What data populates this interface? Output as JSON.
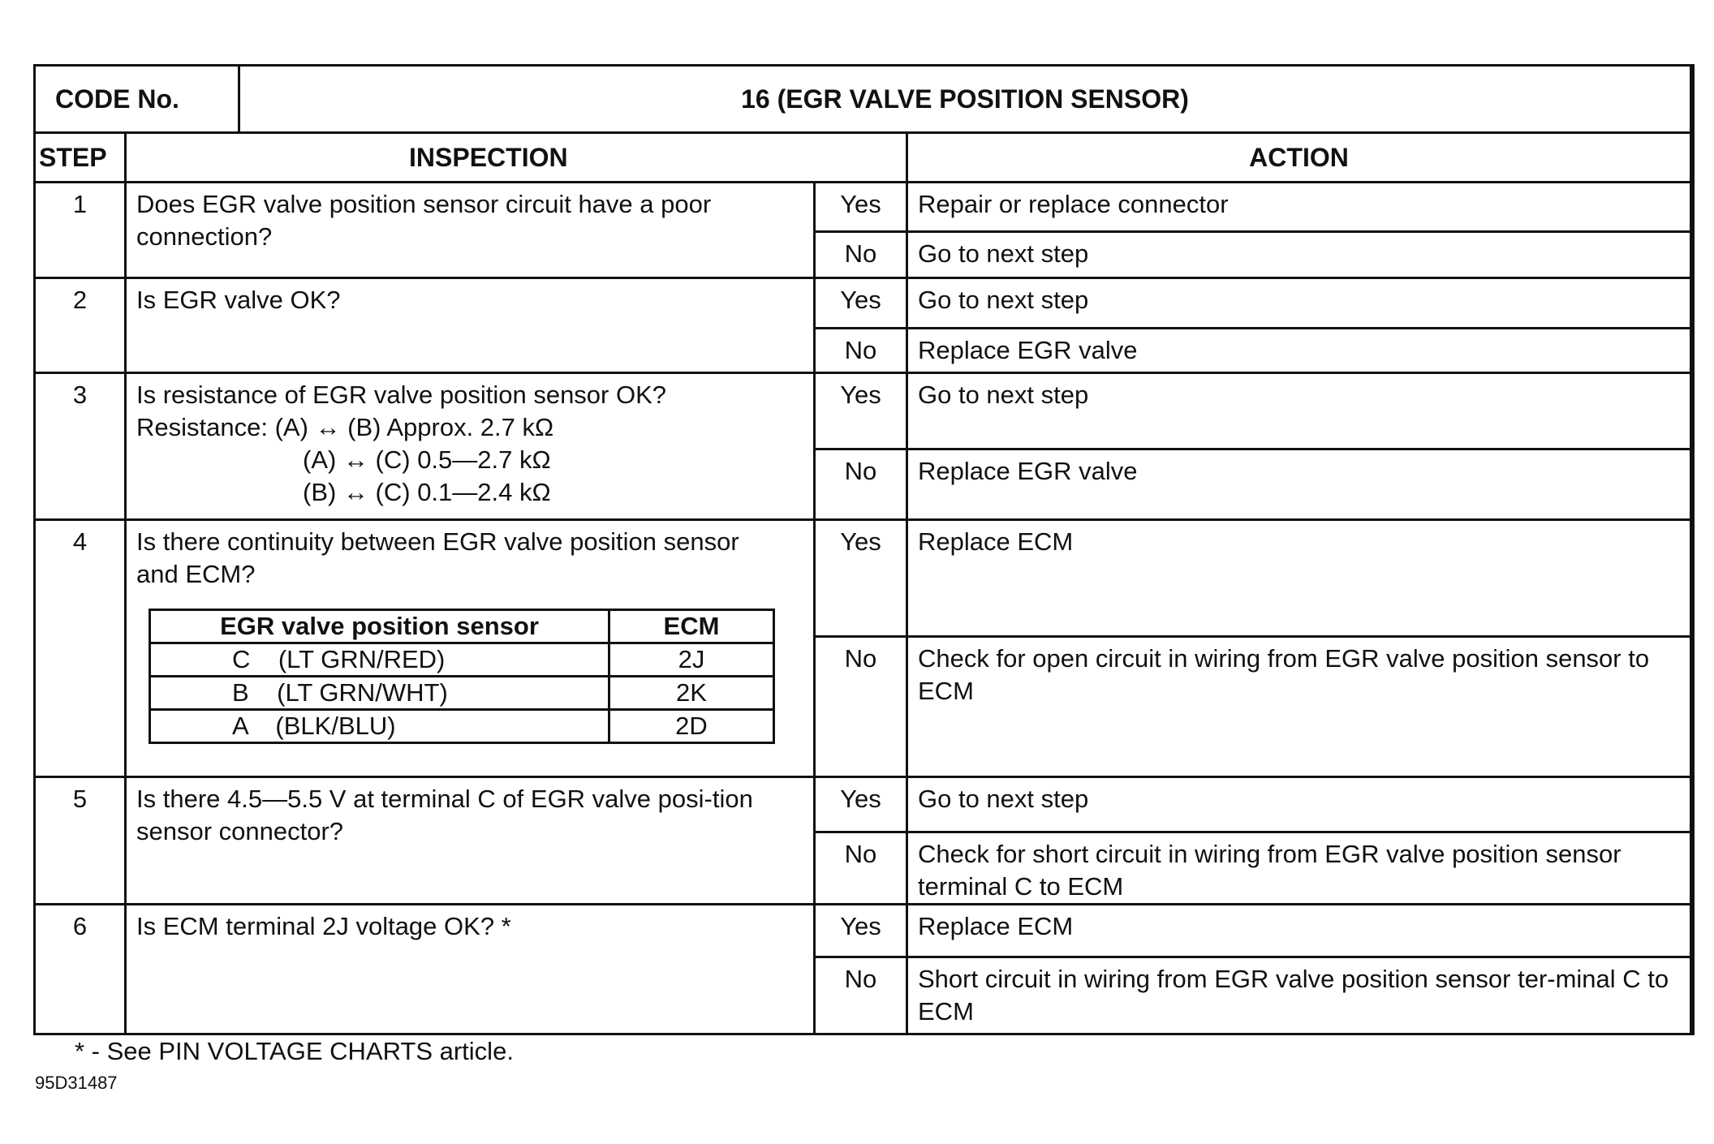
{
  "header": {
    "code_label": "CODE No.",
    "code_value": "16 (EGR VALVE POSITION SENSOR)",
    "step": "STEP",
    "inspection": "INSPECTION",
    "action": "ACTION"
  },
  "steps": [
    {
      "num": "1",
      "inspection": "Does EGR valve position sensor circuit have a poor connection?",
      "yes": "Yes",
      "yes_action": "Repair or replace connector",
      "no": "No",
      "no_action": "Go to next step"
    },
    {
      "num": "2",
      "inspection": "Is EGR valve OK?",
      "yes": "Yes",
      "yes_action": "Go to next step",
      "no": "No",
      "no_action": "Replace EGR valve"
    },
    {
      "num": "3",
      "inspection": "Is resistance of EGR valve position sensor OK?",
      "resistance": [
        "Resistance: (A) ↔ (B) Approx. 2.7 kΩ",
        "(A) ↔ (C) 0.5—2.7 kΩ",
        "(B) ↔ (C) 0.1—2.4 kΩ"
      ],
      "yes": "Yes",
      "yes_action": "Go to next step",
      "no": "No",
      "no_action": "Replace EGR valve"
    },
    {
      "num": "4",
      "inspection": "Is there continuity between EGR valve position sensor and ECM?",
      "yes": "Yes",
      "yes_action": "Replace ECM",
      "no": "No",
      "no_action": "Check for open circuit in wiring from EGR valve position sensor to ECM",
      "table": {
        "headers": [
          "EGR valve position sensor",
          "ECM"
        ],
        "rows": [
          [
            "C    (LT GRN/RED)",
            "2J"
          ],
          [
            "B    (LT GRN/WHT)",
            "2K"
          ],
          [
            "A    (BLK/BLU)",
            "2D"
          ]
        ]
      }
    },
    {
      "num": "5",
      "inspection": "Is there 4.5—5.5 V at terminal C of EGR valve posi-tion sensor connector?",
      "yes": "Yes",
      "yes_action": "Go to next step",
      "no": "No",
      "no_action": "Check for short circuit in wiring from EGR valve position sensor terminal C to ECM"
    },
    {
      "num": "6",
      "inspection": "Is ECM terminal 2J voltage OK? *",
      "yes": "Yes",
      "yes_action": "Replace ECM",
      "no": "No",
      "no_action": "Short circuit in wiring from EGR valve position sensor ter-minal C to ECM"
    }
  ],
  "footnote": "* - See PIN VOLTAGE CHARTS article.",
  "figure_id": "95D31487"
}
